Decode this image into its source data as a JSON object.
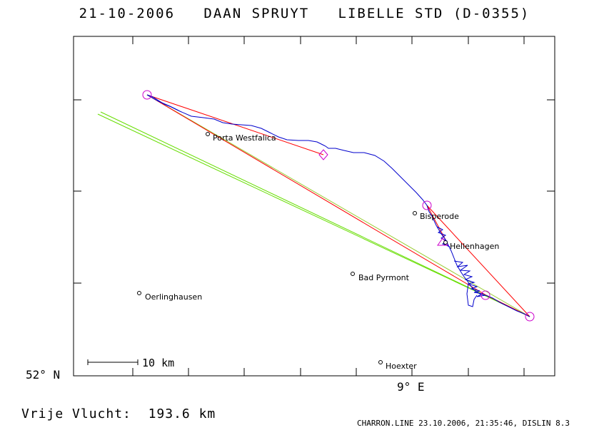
{
  "header": {
    "date": "21-10-2006",
    "pilot": "DAAN SPRUYT",
    "glider": "LIBELLE STD (D-0355)"
  },
  "axes": {
    "lat_label": "52° N",
    "lon_label": "9° E"
  },
  "scale_bar": {
    "label": "10 km"
  },
  "places": [
    {
      "name": "Porta Westfalica"
    },
    {
      "name": "Bisperode"
    },
    {
      "name": "Hellenhagen"
    },
    {
      "name": "Bad Pyrmont"
    },
    {
      "name": "Oerlinghausen"
    },
    {
      "name": "Hoexter"
    }
  ],
  "footer": {
    "free_flight_label": "Vrije Vlucht:",
    "free_flight_value": "193.6 km",
    "credit": "CHARRON.LINE 23.10.2006, 21:35:46, DISLIN 8.3"
  },
  "colors": {
    "track": "#0000cc",
    "task": "#ff0000",
    "free_flight": "#66dd00",
    "turnpoint": "#cc00cc"
  }
}
